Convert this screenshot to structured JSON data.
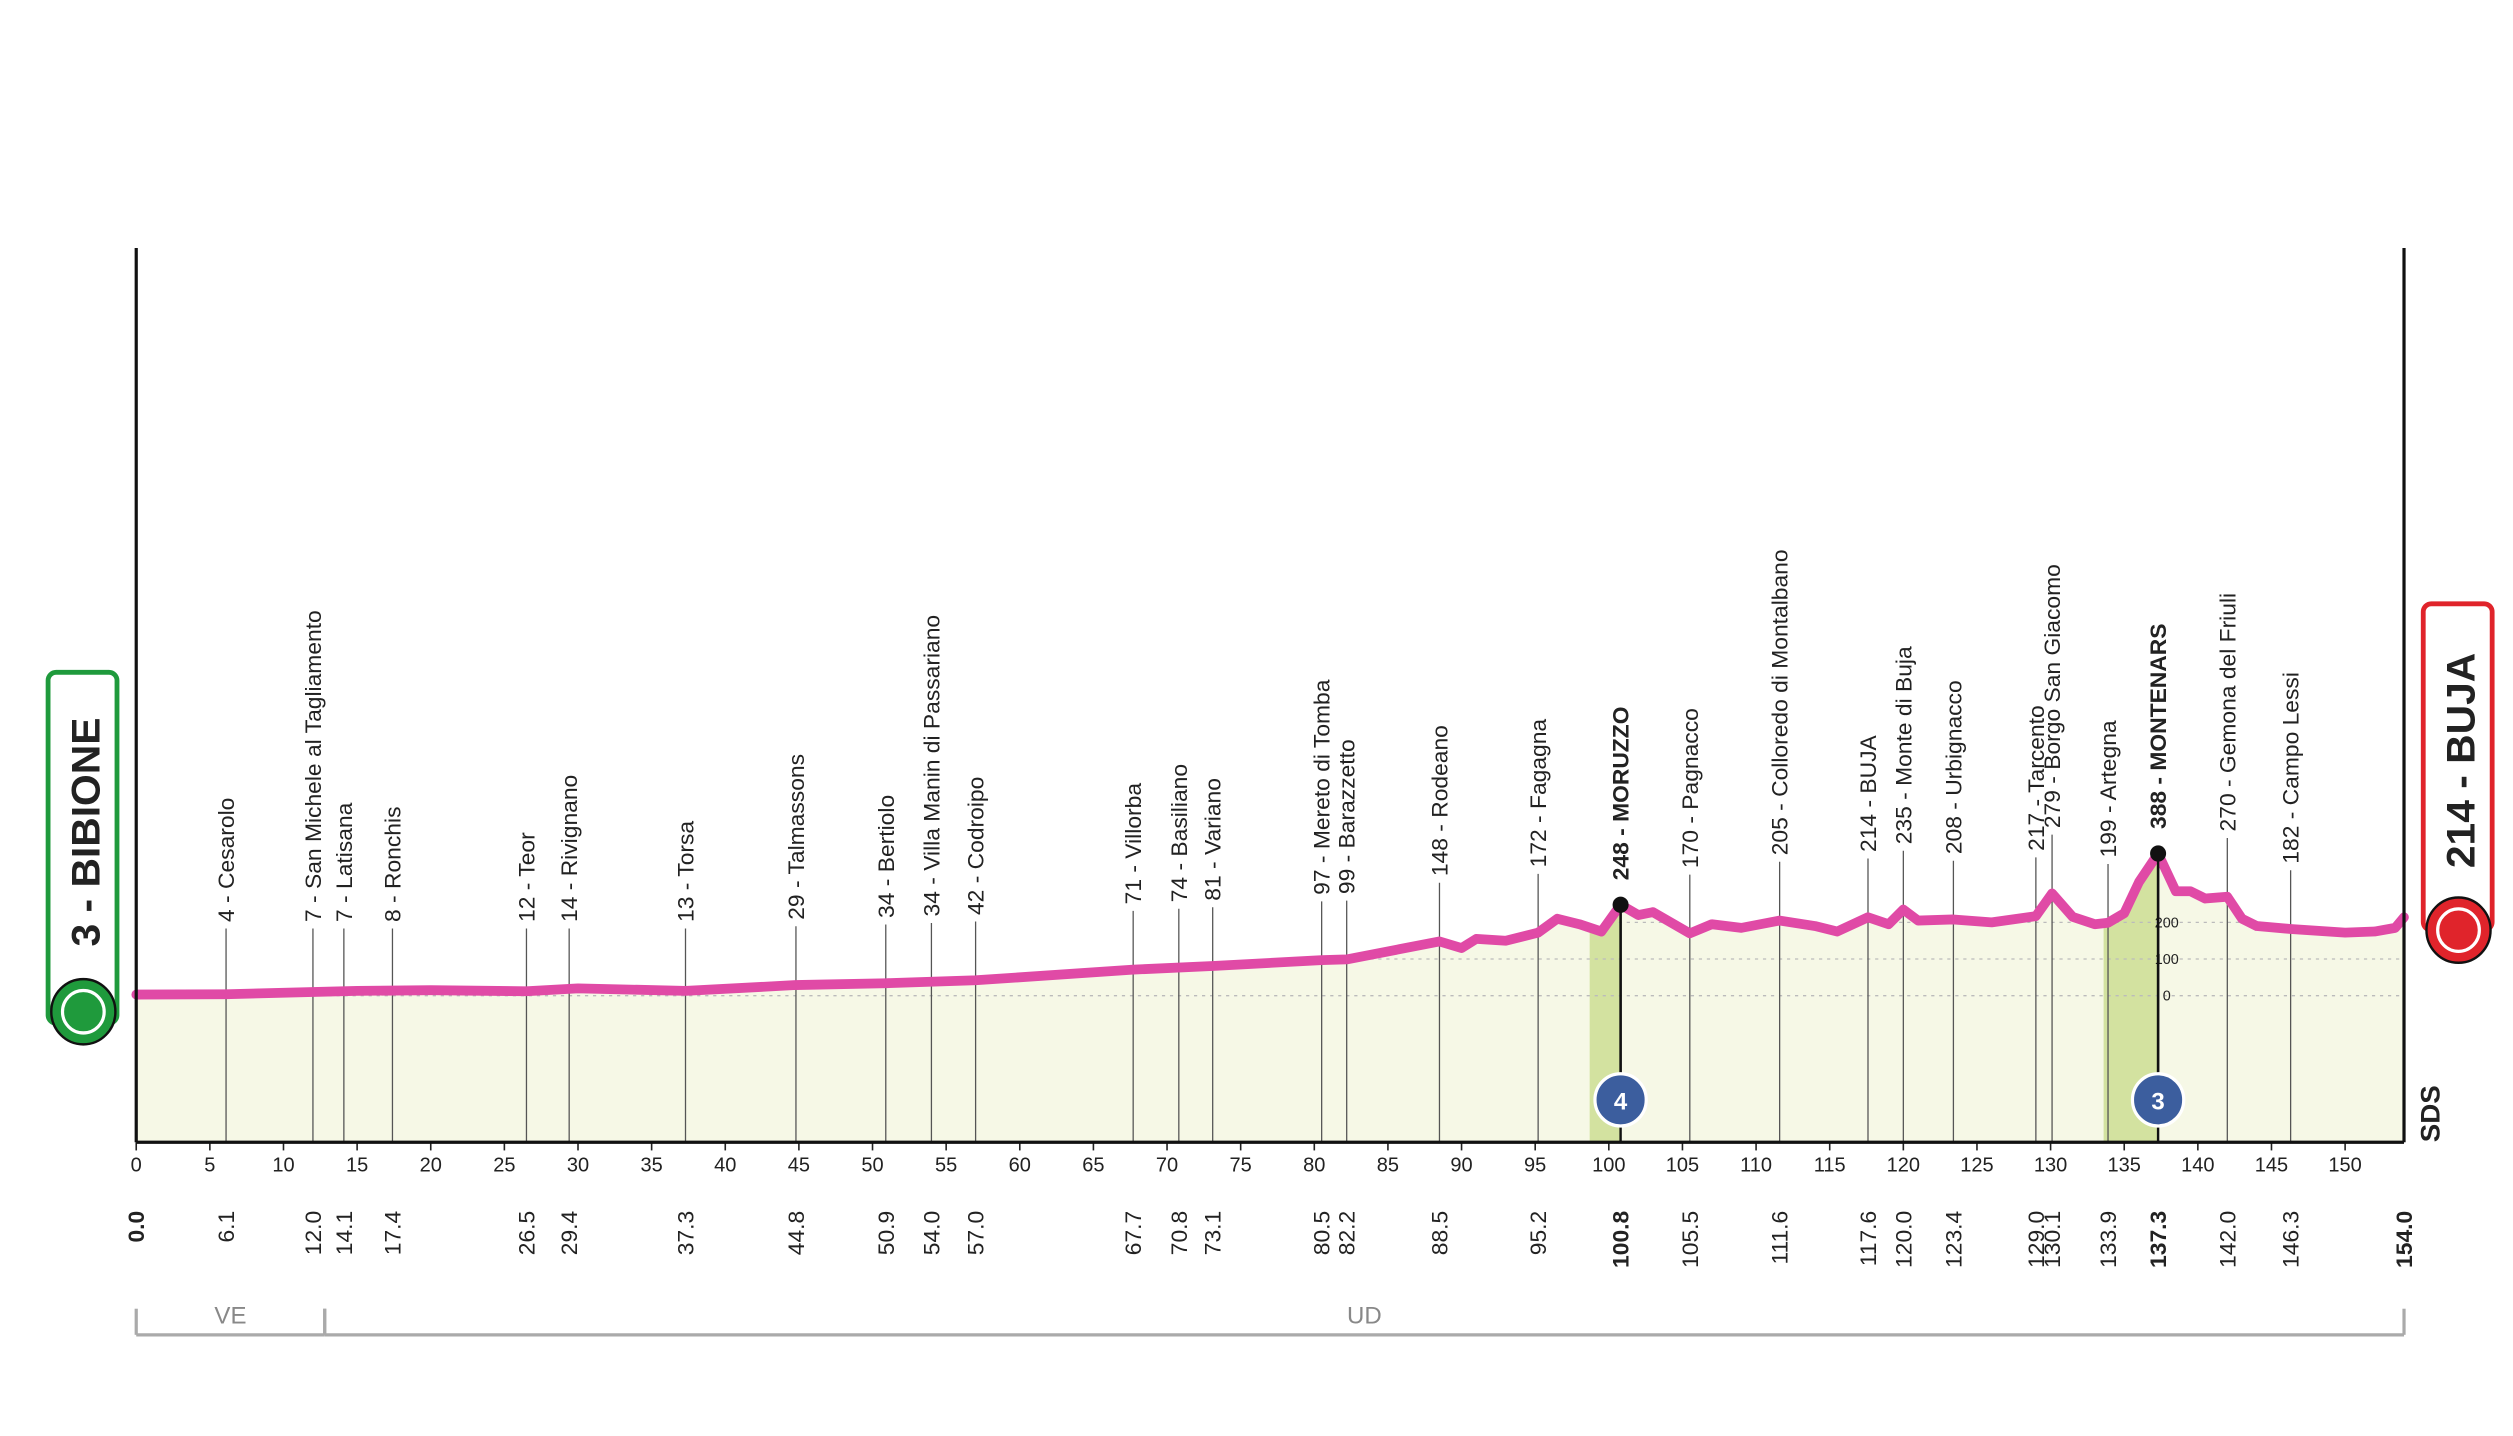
{
  "chart_data": {
    "type": "area",
    "color": "#e04aa6",
    "fill": "#f6f8e6",
    "x": [
      0,
      6.1,
      15,
      20,
      26.5,
      30,
      37.3,
      44.8,
      50.9,
      57,
      67.7,
      73.1,
      80.5,
      82.2,
      88.5,
      90,
      91,
      93,
      95.2,
      96.5,
      98,
      99.5,
      100.8,
      102,
      103,
      105.5,
      107,
      109,
      111.6,
      114,
      115.5,
      117.6,
      119,
      120,
      121,
      123.4,
      126,
      129,
      130.1,
      131.5,
      133,
      133.9,
      135,
      136,
      137.3,
      138.5,
      139.5,
      140.5,
      142,
      143,
      144,
      146.3,
      150,
      152,
      153.4,
      154
    ],
    "values": [
      3,
      4,
      13,
      15,
      12,
      20,
      13,
      29,
      34,
      42,
      71,
      81,
      97,
      99,
      148,
      130,
      155,
      150,
      172,
      210,
      195,
      175,
      248,
      220,
      228,
      170,
      195,
      185,
      205,
      190,
      175,
      214,
      195,
      235,
      205,
      208,
      200,
      217,
      279,
      215,
      195,
      199,
      225,
      310,
      388,
      285,
      285,
      265,
      270,
      210,
      190,
      182,
      172,
      175,
      185,
      214
    ],
    "xlim": [
      0,
      154
    ],
    "ylim": [
      -400,
      2040
    ],
    "xticks": [
      0,
      5,
      10,
      15,
      20,
      25,
      30,
      35,
      40,
      45,
      50,
      55,
      60,
      65,
      70,
      75,
      80,
      85,
      90,
      95,
      100,
      105,
      110,
      115,
      120,
      125,
      130,
      135,
      140,
      145,
      150
    ],
    "yticks": [
      0,
      100,
      200
    ],
    "start": {
      "label": "3 - BIBIONE",
      "km": {
        "value": 0,
        "label": "0.0"
      },
      "color": "#1f9a3c"
    },
    "finish": {
      "label": "214 - BUJA",
      "km": {
        "value": 154,
        "label": "154.0"
      },
      "color": "#e0242b"
    },
    "towns": [
      {
        "label": "4 - Cesarolo",
        "km": 6.1
      },
      {
        "label": "7 - San Michele al Tagliamento",
        "km": {
          "value": 12,
          "label": "12.0"
        }
      },
      {
        "label": "7 - Latisana",
        "km": 14.1
      },
      {
        "label": "8 - Ronchis",
        "km": 17.4
      },
      {
        "label": "12 - Teor",
        "km": 26.5
      },
      {
        "label": "14 - Rivignano",
        "km": 29.4
      },
      {
        "label": "13 - Torsa",
        "km": 37.3
      },
      {
        "label": "29 - Talmassons",
        "km": 44.8
      },
      {
        "label": "34 - Bertiolo",
        "km": 50.9
      },
      {
        "label": "34 - Villa Manin di Passariano",
        "km": {
          "value": 54,
          "label": "54.0"
        }
      },
      {
        "label": "42 - Codroipo",
        "km": {
          "value": 57,
          "label": "57.0"
        }
      },
      {
        "label": "71 - Villorba",
        "km": 67.7
      },
      {
        "label": "74 - Basiliano",
        "km": 70.8
      },
      {
        "label": "81 - Variano",
        "km": 73.1
      },
      {
        "label": "97 - Mereto di Tomba",
        "km": 80.5
      },
      {
        "label": "99 - Barazzetto",
        "km": 82.2
      },
      {
        "label": "148 - Rodeano",
        "km": 88.5
      },
      {
        "label": "172 - Fagagna",
        "km": 95.2
      },
      {
        "label": "248 - MORUZZO",
        "km": 100.8,
        "bold": true
      },
      {
        "label": "170 - Pagnacco",
        "km": 105.5
      },
      {
        "label": "205 - Colloredo di Montalbano",
        "km": 111.6
      },
      {
        "label": "214 - BUJA",
        "km": 117.6
      },
      {
        "label": "235 - Monte di Buja",
        "km": {
          "value": 120,
          "label": "120.0"
        }
      },
      {
        "label": "208 - Urbignacco",
        "km": 123.4
      },
      {
        "label": "217 - Tarcento",
        "km": {
          "value": 129,
          "label": "129.0"
        }
      },
      {
        "label": "279 - Borgo San Giacomo",
        "km": 130.1
      },
      {
        "label": "199 - Artegna",
        "km": 133.9
      },
      {
        "label": "388 - MONTENARS",
        "km": 137.3,
        "bold": true
      },
      {
        "label": "270 - Gemona del Friuli",
        "km": {
          "value": 142,
          "label": "142.0"
        }
      },
      {
        "label": "182 - Campo Lessi",
        "km": 146.3
      }
    ],
    "climbs": [
      {
        "category": "4",
        "km": 100.8,
        "elevation": 248,
        "start_km": 98.7
      },
      {
        "category": "3",
        "km": 137.3,
        "elevation": 388,
        "start_km": 133.6
      }
    ],
    "provinces": [
      {
        "label": "VE",
        "from": 0,
        "to": 12.8
      },
      {
        "label": "UD",
        "from": 12.8,
        "to": 154
      }
    ],
    "logo": "SDS"
  }
}
